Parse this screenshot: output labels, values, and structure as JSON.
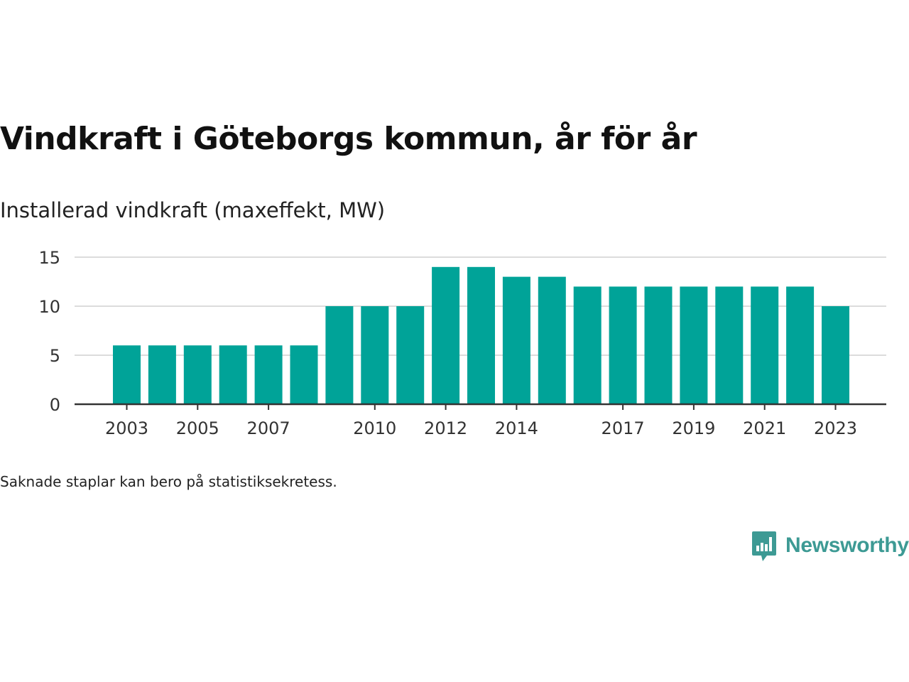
{
  "header": {
    "title": "Vindkraft i Göteborgs kommun, år för år",
    "subtitle": "Installerad vindkraft (maxeffekt, MW)"
  },
  "footer": {
    "note": "Saknade staplar kan bero på statistiksekretess.",
    "brand": "Newsworthy"
  },
  "colors": {
    "bar": "#00a398",
    "grid": "#dcdcdc",
    "axis": "#333333",
    "brand": "#3d9a94"
  },
  "chart_data": {
    "type": "bar",
    "categories": [
      2003,
      2004,
      2005,
      2006,
      2007,
      2008,
      2009,
      2010,
      2011,
      2012,
      2013,
      2014,
      2015,
      2016,
      2017,
      2018,
      2019,
      2020,
      2021,
      2022,
      2023
    ],
    "values": [
      6,
      6,
      6,
      6,
      6,
      6,
      10,
      10,
      10,
      14,
      14,
      13,
      13,
      12,
      12,
      12,
      12,
      12,
      12,
      12,
      10
    ],
    "x_tick_labels": [
      "2003",
      "2005",
      "2007",
      "2010",
      "2012",
      "2014",
      "2017",
      "2019",
      "2021",
      "2023"
    ],
    "y_ticks": [
      0,
      5,
      10,
      15
    ],
    "ylim": [
      0,
      15
    ],
    "title": "Vindkraft i Göteborgs kommun, år för år",
    "ylabel": "Installerad vindkraft (maxeffekt, MW)",
    "xlabel": "",
    "grid": true,
    "legend": "none"
  }
}
